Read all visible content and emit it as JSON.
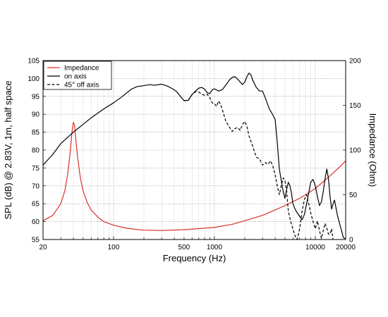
{
  "chart_data": {
    "type": "line",
    "xlabel": "Frequency (Hz)",
    "ylabel_left": "SPL (dB) @ 2.83V, 1m, half space",
    "ylabel_right": "Impedance (Ohm)",
    "x_scale": "log",
    "xlim": [
      20,
      20000
    ],
    "ylim_left": [
      55,
      105
    ],
    "ylim_right": [
      0,
      200
    ],
    "x_ticks": [
      {
        "value": 20,
        "label": "20"
      },
      {
        "value": 100,
        "label": "100"
      },
      {
        "value": 500,
        "label": "500"
      },
      {
        "value": 1000,
        "label": "1000"
      },
      {
        "value": 10000,
        "label": "10000"
      },
      {
        "value": 20000,
        "label": "20000"
      }
    ],
    "y_left_ticks": [
      "55",
      "60",
      "65",
      "70",
      "75",
      "80",
      "85",
      "90",
      "95",
      "100",
      "105"
    ],
    "y_right_ticks": [
      "0",
      "50",
      "100",
      "150",
      "200"
    ],
    "grid": true,
    "legend_position": "top-left",
    "series": [
      {
        "name": "Impedance",
        "axis": "right",
        "color": "#d9302a",
        "style": "solid",
        "points": [
          [
            20,
            21
          ],
          [
            25,
            27
          ],
          [
            30,
            40
          ],
          [
            33,
            55
          ],
          [
            35,
            72
          ],
          [
            37,
            95
          ],
          [
            38,
            110
          ],
          [
            39,
            123
          ],
          [
            40,
            131
          ],
          [
            41,
            128
          ],
          [
            42,
            115
          ],
          [
            44,
            92
          ],
          [
            47,
            68
          ],
          [
            50,
            54
          ],
          [
            55,
            41
          ],
          [
            60,
            33
          ],
          [
            70,
            25
          ],
          [
            80,
            20
          ],
          [
            100,
            16
          ],
          [
            130,
            13
          ],
          [
            160,
            11.5
          ],
          [
            200,
            10.5
          ],
          [
            300,
            10
          ],
          [
            500,
            11
          ],
          [
            1000,
            13.5
          ],
          [
            1500,
            17
          ],
          [
            2000,
            21
          ],
          [
            3000,
            27
          ],
          [
            4000,
            33
          ],
          [
            5000,
            38
          ],
          [
            7000,
            46
          ],
          [
            10000,
            57
          ],
          [
            13000,
            68
          ],
          [
            17000,
            80
          ],
          [
            20000,
            88
          ]
        ]
      },
      {
        "name": "on axis",
        "axis": "left",
        "color": "#000000",
        "style": "solid",
        "points": [
          [
            20,
            75.8
          ],
          [
            25,
            78.8
          ],
          [
            30,
            81.8
          ],
          [
            40,
            85
          ],
          [
            50,
            87.2
          ],
          [
            60,
            89
          ],
          [
            80,
            91.5
          ],
          [
            100,
            93.2
          ],
          [
            120,
            94.8
          ],
          [
            150,
            97
          ],
          [
            170,
            97.7
          ],
          [
            200,
            98
          ],
          [
            230,
            98.3
          ],
          [
            250,
            98.1
          ],
          [
            300,
            98.4
          ],
          [
            340,
            97.9
          ],
          [
            380,
            97.2
          ],
          [
            420,
            96.4
          ],
          [
            460,
            95
          ],
          [
            500,
            93.8
          ],
          [
            550,
            93.9
          ],
          [
            600,
            95.5
          ],
          [
            650,
            96.5
          ],
          [
            700,
            97.3
          ],
          [
            750,
            97.5
          ],
          [
            800,
            97
          ],
          [
            850,
            96
          ],
          [
            900,
            95.8
          ],
          [
            950,
            96.8
          ],
          [
            1000,
            97.1
          ],
          [
            1100,
            96.5
          ],
          [
            1200,
            96.9
          ],
          [
            1300,
            98.2
          ],
          [
            1400,
            99.5
          ],
          [
            1500,
            100.3
          ],
          [
            1600,
            100.5
          ],
          [
            1700,
            99.8
          ],
          [
            1800,
            99
          ],
          [
            1900,
            98.3
          ],
          [
            2000,
            99
          ],
          [
            2100,
            100.5
          ],
          [
            2200,
            101.5
          ],
          [
            2300,
            101
          ],
          [
            2400,
            99.5
          ],
          [
            2600,
            97.5
          ],
          [
            2800,
            96.5
          ],
          [
            3000,
            96.5
          ],
          [
            3200,
            94.5
          ],
          [
            3500,
            91.5
          ],
          [
            3800,
            89.8
          ],
          [
            4000,
            88.5
          ],
          [
            4200,
            82
          ],
          [
            4400,
            74.7
          ],
          [
            4600,
            71.5
          ],
          [
            4800,
            68.5
          ],
          [
            5000,
            66.5
          ],
          [
            5200,
            69
          ],
          [
            5400,
            71
          ],
          [
            5600,
            70
          ],
          [
            5800,
            68
          ],
          [
            6000,
            65
          ],
          [
            6300,
            63.5
          ],
          [
            6600,
            62.5
          ],
          [
            7000,
            61.5
          ],
          [
            7400,
            60.5
          ],
          [
            7800,
            62
          ],
          [
            8200,
            65
          ],
          [
            8600,
            68
          ],
          [
            9000,
            71
          ],
          [
            9500,
            71.8
          ],
          [
            10000,
            70
          ],
          [
            10500,
            67
          ],
          [
            11000,
            64.5
          ],
          [
            11500,
            65.5
          ],
          [
            12000,
            68.5
          ],
          [
            12500,
            72
          ],
          [
            13000,
            74.7
          ],
          [
            13500,
            72
          ],
          [
            14000,
            67
          ],
          [
            14500,
            63.5
          ],
          [
            15000,
            65
          ],
          [
            15500,
            66
          ],
          [
            16000,
            64
          ],
          [
            16500,
            62
          ],
          [
            17000,
            60.5
          ],
          [
            18000,
            58
          ],
          [
            19000,
            55.5
          ],
          [
            20000,
            55.2
          ]
        ]
      },
      {
        "name": "45° off axis",
        "axis": "left",
        "color": "#000000",
        "style": "dashed",
        "points": [
          [
            500,
            93.8
          ],
          [
            550,
            93.9
          ],
          [
            600,
            95.5
          ],
          [
            650,
            96.3
          ],
          [
            700,
            96.2
          ],
          [
            750,
            95.6
          ],
          [
            800,
            95.3
          ],
          [
            850,
            95.6
          ],
          [
            900,
            94.6
          ],
          [
            950,
            93.2
          ],
          [
            1000,
            93
          ],
          [
            1050,
            92.2
          ],
          [
            1100,
            93.7
          ],
          [
            1150,
            92.8
          ],
          [
            1200,
            91.2
          ],
          [
            1300,
            88
          ],
          [
            1400,
            86.5
          ],
          [
            1500,
            85.2
          ],
          [
            1600,
            86
          ],
          [
            1700,
            86.3
          ],
          [
            1800,
            85.5
          ],
          [
            1900,
            87.2
          ],
          [
            2000,
            88
          ],
          [
            2100,
            86.6
          ],
          [
            2200,
            84
          ],
          [
            2400,
            81
          ],
          [
            2600,
            78
          ],
          [
            2800,
            77.5
          ],
          [
            3000,
            75.8
          ],
          [
            3200,
            76.5
          ],
          [
            3400,
            76
          ],
          [
            3600,
            77
          ],
          [
            3800,
            75.5
          ],
          [
            4000,
            73
          ],
          [
            4200,
            70
          ],
          [
            4400,
            67.5
          ],
          [
            4600,
            70
          ],
          [
            4800,
            72.2
          ],
          [
            5000,
            71.5
          ],
          [
            5200,
            68.5
          ],
          [
            5400,
            63
          ],
          [
            5700,
            60
          ],
          [
            6000,
            58
          ],
          [
            6300,
            56
          ],
          [
            6600,
            55
          ],
          [
            7000,
            58
          ],
          [
            7400,
            63
          ],
          [
            7800,
            66.2
          ],
          [
            8200,
            67.5
          ],
          [
            8600,
            65
          ],
          [
            9000,
            62.5
          ],
          [
            9500,
            60
          ],
          [
            10000,
            58
          ],
          [
            10500,
            60.2
          ],
          [
            11000,
            57.5
          ],
          [
            11500,
            55.3
          ],
          [
            12000,
            57.5
          ],
          [
            12500,
            59.5
          ],
          [
            13000,
            58.2
          ],
          [
            13500,
            56.5
          ],
          [
            14000,
            56.5
          ],
          [
            14500,
            58
          ],
          [
            15000,
            55
          ]
        ]
      }
    ]
  }
}
